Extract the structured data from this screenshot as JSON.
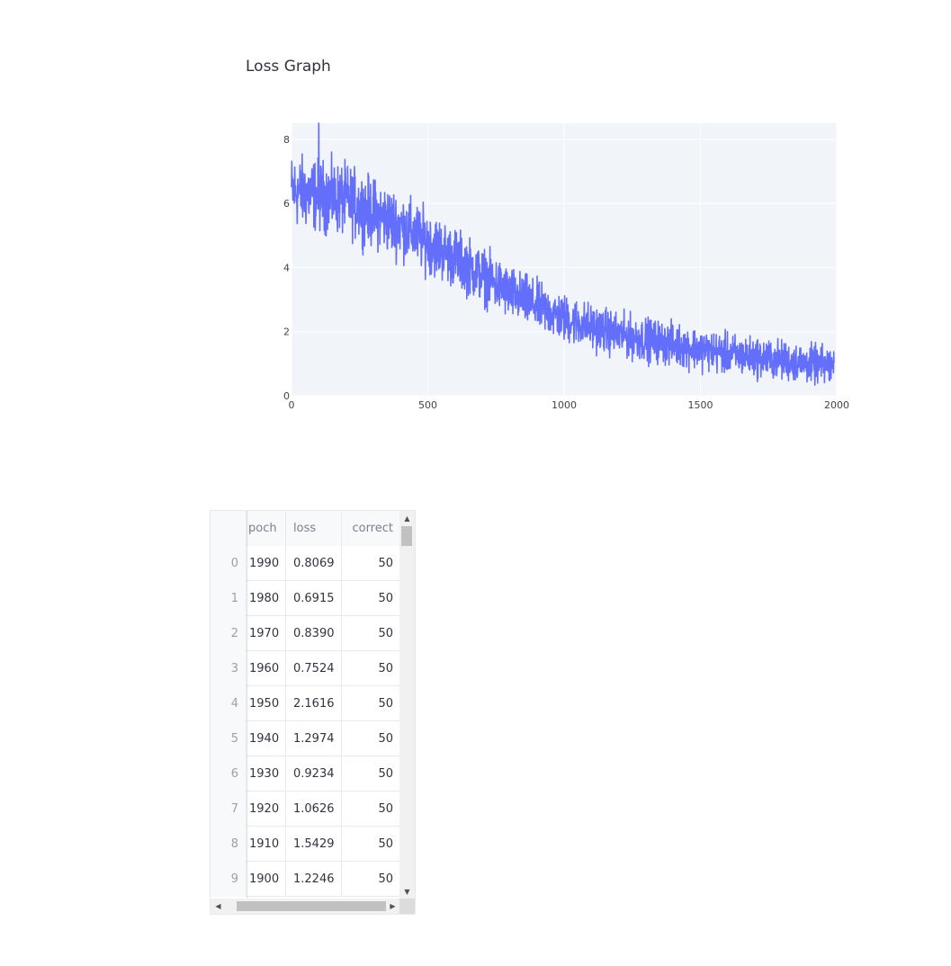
{
  "page": {
    "title": "Loss Graph"
  },
  "chart_data": {
    "type": "line",
    "title": "",
    "xlabel": "",
    "ylabel": "",
    "xlim": [
      0,
      2000
    ],
    "ylim": [
      0,
      8.5
    ],
    "x_ticks": [
      0,
      500,
      1000,
      1500,
      2000
    ],
    "y_ticks": [
      0,
      2,
      4,
      6,
      8
    ],
    "grid": true,
    "legend": "none",
    "series": [
      {
        "name": "",
        "color": "#636efa",
        "x_start": 0,
        "x_end": 1990,
        "x_step": 1,
        "trend_points": [
          [
            0,
            6.4
          ],
          [
            200,
            6.1
          ],
          [
            400,
            5.3
          ],
          [
            600,
            4.3
          ],
          [
            800,
            3.2
          ],
          [
            1000,
            2.4
          ],
          [
            1200,
            1.9
          ],
          [
            1400,
            1.6
          ],
          [
            1600,
            1.3
          ],
          [
            1800,
            1.1
          ],
          [
            1990,
            0.9
          ]
        ],
        "noise_amplitude": 0.9,
        "peak": {
          "x": 100,
          "y": 8.5
        }
      }
    ]
  },
  "table": {
    "columns": [
      "",
      "poch",
      "loss",
      "correct"
    ],
    "rows": [
      {
        "index": "0",
        "epoch": "1990",
        "loss": "0.8069",
        "correct": "50"
      },
      {
        "index": "1",
        "epoch": "1980",
        "loss": "0.6915",
        "correct": "50"
      },
      {
        "index": "2",
        "epoch": "1970",
        "loss": "0.8390",
        "correct": "50"
      },
      {
        "index": "3",
        "epoch": "1960",
        "loss": "0.7524",
        "correct": "50"
      },
      {
        "index": "4",
        "epoch": "1950",
        "loss": "2.1616",
        "correct": "50"
      },
      {
        "index": "5",
        "epoch": "1940",
        "loss": "1.2974",
        "correct": "50"
      },
      {
        "index": "6",
        "epoch": "1930",
        "loss": "0.9234",
        "correct": "50"
      },
      {
        "index": "7",
        "epoch": "1920",
        "loss": "1.0626",
        "correct": "50"
      },
      {
        "index": "8",
        "epoch": "1910",
        "loss": "1.5429",
        "correct": "50"
      },
      {
        "index": "9",
        "epoch": "1900",
        "loss": "1.2246",
        "correct": "50"
      }
    ]
  },
  "scrollbars": {
    "up_icon": "▲",
    "down_icon": "▼",
    "left_icon": "◀",
    "right_icon": "▶"
  }
}
